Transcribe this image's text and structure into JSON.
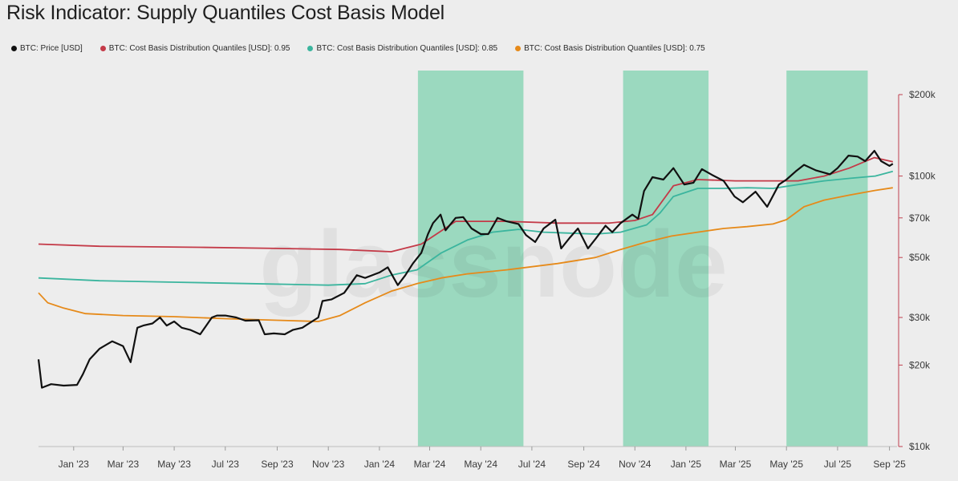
{
  "chart_data": {
    "type": "line",
    "title": "Risk Indicator: Supply Quantiles Cost Basis Model",
    "watermark": "glassnode",
    "y_scale": "log",
    "ylim": [
      10000,
      200000
    ],
    "xlim": [
      "2022-11-20",
      "2025-09-10"
    ],
    "y_ticks": [
      {
        "value": 10000,
        "label": "$10k"
      },
      {
        "value": 20000,
        "label": "$20k"
      },
      {
        "value": 30000,
        "label": "$30k"
      },
      {
        "value": 50000,
        "label": "$50k"
      },
      {
        "value": 70000,
        "label": "$70k"
      },
      {
        "value": 100000,
        "label": "$100k"
      },
      {
        "value": 200000,
        "label": "$200k"
      }
    ],
    "x_ticks": [
      {
        "date": "2023-01-01",
        "label": "Jan '23"
      },
      {
        "date": "2023-03-01",
        "label": "Mar '23"
      },
      {
        "date": "2023-05-01",
        "label": "May '23"
      },
      {
        "date": "2023-07-01",
        "label": "Jul '23"
      },
      {
        "date": "2023-09-01",
        "label": "Sep '23"
      },
      {
        "date": "2023-11-01",
        "label": "Nov '23"
      },
      {
        "date": "2024-01-01",
        "label": "Jan '24"
      },
      {
        "date": "2024-03-01",
        "label": "Mar '24"
      },
      {
        "date": "2024-05-01",
        "label": "May '24"
      },
      {
        "date": "2024-07-01",
        "label": "Jul '24"
      },
      {
        "date": "2024-09-01",
        "label": "Sep '24"
      },
      {
        "date": "2024-11-01",
        "label": "Nov '24"
      },
      {
        "date": "2025-01-01",
        "label": "Jan '25"
      },
      {
        "date": "2025-03-01",
        "label": "Mar '25"
      },
      {
        "date": "2025-05-01",
        "label": "May '25"
      },
      {
        "date": "2025-07-01",
        "label": "Jul '25"
      },
      {
        "date": "2025-09-01",
        "label": "Sep '25"
      }
    ],
    "shaded_regions": {
      "color": "#9bd9bf",
      "ranges": [
        [
          "2024-02-16",
          "2024-06-21"
        ],
        [
          "2024-10-18",
          "2025-01-28"
        ],
        [
          "2025-05-01",
          "2025-08-06"
        ]
      ]
    },
    "series": [
      {
        "name": "BTC: Price [USD]",
        "color": "#111111",
        "x": [
          "2022-11-20",
          "2022-11-24",
          "2022-12-05",
          "2022-12-20",
          "2023-01-05",
          "2023-01-12",
          "2023-01-20",
          "2023-02-01",
          "2023-02-16",
          "2023-03-01",
          "2023-03-10",
          "2023-03-18",
          "2023-03-25",
          "2023-04-05",
          "2023-04-14",
          "2023-04-22",
          "2023-05-01",
          "2023-05-10",
          "2023-05-20",
          "2023-06-01",
          "2023-06-15",
          "2023-06-21",
          "2023-07-01",
          "2023-07-14",
          "2023-07-25",
          "2023-08-10",
          "2023-08-17",
          "2023-08-28",
          "2023-09-10",
          "2023-09-20",
          "2023-10-01",
          "2023-10-20",
          "2023-10-25",
          "2023-11-05",
          "2023-11-20",
          "2023-12-05",
          "2023-12-15",
          "2024-01-01",
          "2024-01-11",
          "2024-01-23",
          "2024-02-01",
          "2024-02-10",
          "2024-02-20",
          "2024-02-28",
          "2024-03-05",
          "2024-03-14",
          "2024-03-20",
          "2024-04-01",
          "2024-04-10",
          "2024-04-20",
          "2024-05-01",
          "2024-05-10",
          "2024-05-21",
          "2024-06-01",
          "2024-06-15",
          "2024-06-24",
          "2024-07-05",
          "2024-07-15",
          "2024-07-29",
          "2024-08-05",
          "2024-08-15",
          "2024-08-25",
          "2024-09-06",
          "2024-09-15",
          "2024-09-27",
          "2024-10-05",
          "2024-10-15",
          "2024-10-29",
          "2024-11-05",
          "2024-11-12",
          "2024-11-22",
          "2024-12-05",
          "2024-12-17",
          "2024-12-30",
          "2025-01-10",
          "2025-01-20",
          "2025-02-01",
          "2025-02-15",
          "2025-02-28",
          "2025-03-10",
          "2025-03-25",
          "2025-04-08",
          "2025-04-22",
          "2025-05-01",
          "2025-05-12",
          "2025-05-22",
          "2025-06-05",
          "2025-06-22",
          "2025-07-01",
          "2025-07-14",
          "2025-07-25",
          "2025-08-03",
          "2025-08-14",
          "2025-08-22",
          "2025-09-01",
          "2025-09-05"
        ],
        "values": [
          21000,
          16500,
          17000,
          16800,
          16900,
          18500,
          21000,
          23000,
          24500,
          23500,
          20500,
          27500,
          28000,
          28500,
          30000,
          28000,
          29000,
          27500,
          27000,
          26000,
          30000,
          30500,
          30500,
          30000,
          29200,
          29300,
          26000,
          26200,
          26000,
          27000,
          27500,
          30000,
          34500,
          35000,
          37000,
          43000,
          42000,
          44000,
          46000,
          39500,
          43000,
          47500,
          52000,
          61000,
          67000,
          72000,
          63000,
          70000,
          70500,
          64000,
          61000,
          61000,
          70000,
          68000,
          66500,
          60500,
          57000,
          64000,
          69000,
          54000,
          59000,
          64000,
          54000,
          58500,
          65500,
          62000,
          67000,
          72000,
          69500,
          88000,
          99000,
          97000,
          107000,
          93000,
          94500,
          106000,
          101000,
          96000,
          84000,
          80000,
          87500,
          77000,
          93000,
          97000,
          104000,
          110000,
          105000,
          101500,
          107000,
          119000,
          118000,
          113500,
          124000,
          113500,
          109000,
          111000
        ]
      },
      {
        "name": "BTC: Cost Basis Distribution Quantiles [USD]: 0.95",
        "color": "#c43a48",
        "x": [
          "2022-11-20",
          "2023-02-01",
          "2023-06-01",
          "2023-09-01",
          "2023-11-15",
          "2024-01-15",
          "2024-02-20",
          "2024-04-01",
          "2024-06-01",
          "2024-08-01",
          "2024-10-01",
          "2024-11-01",
          "2024-11-22",
          "2024-12-17",
          "2025-01-15",
          "2025-03-01",
          "2025-05-15",
          "2025-06-15",
          "2025-07-15",
          "2025-08-14",
          "2025-09-05"
        ],
        "values": [
          56000,
          55000,
          54500,
          54000,
          53500,
          52500,
          56000,
          68000,
          68000,
          67000,
          67000,
          68500,
          72000,
          92000,
          97000,
          96000,
          96000,
          100000,
          107000,
          117000,
          113000
        ]
      },
      {
        "name": "BTC: Cost Basis Distribution Quantiles [USD]: 0.85",
        "color": "#3bb59e",
        "x": [
          "2022-11-20",
          "2023-02-01",
          "2023-05-01",
          "2023-08-01",
          "2023-11-01",
          "2023-12-15",
          "2024-01-15",
          "2024-02-15",
          "2024-03-15",
          "2024-04-15",
          "2024-05-15",
          "2024-06-15",
          "2024-07-15",
          "2024-08-15",
          "2024-09-15",
          "2024-10-15",
          "2024-11-15",
          "2024-12-01",
          "2024-12-17",
          "2025-01-15",
          "2025-02-15",
          "2025-03-15",
          "2025-04-15",
          "2025-05-15",
          "2025-06-15",
          "2025-07-15",
          "2025-08-15",
          "2025-09-05"
        ],
        "values": [
          42000,
          41000,
          40500,
          40000,
          39500,
          40000,
          43000,
          45000,
          52000,
          58000,
          62000,
          63500,
          62000,
          61500,
          61000,
          62000,
          66000,
          73000,
          84000,
          90000,
          90000,
          90500,
          90000,
          93000,
          96000,
          98000,
          100000,
          104000
        ]
      },
      {
        "name": "BTC: Cost Basis Distribution Quantiles [USD]: 0.75",
        "color": "#e68a1a",
        "x": [
          "2022-11-20",
          "2022-12-01",
          "2022-12-20",
          "2023-01-15",
          "2023-03-01",
          "2023-05-01",
          "2023-07-01",
          "2023-09-01",
          "2023-10-20",
          "2023-11-15",
          "2023-12-15",
          "2024-01-15",
          "2024-02-15",
          "2024-03-15",
          "2024-04-15",
          "2024-06-01",
          "2024-08-01",
          "2024-09-15",
          "2024-10-15",
          "2024-11-15",
          "2024-12-15",
          "2025-01-15",
          "2025-02-15",
          "2025-03-15",
          "2025-04-15",
          "2025-05-01",
          "2025-05-22",
          "2025-06-15",
          "2025-07-15",
          "2025-08-15",
          "2025-09-05"
        ],
        "values": [
          37000,
          34000,
          32500,
          31000,
          30500,
          30200,
          29700,
          29300,
          29000,
          30500,
          34000,
          37500,
          40000,
          42000,
          43500,
          45000,
          47500,
          50000,
          53500,
          57000,
          60000,
          62000,
          64000,
          65000,
          66500,
          69000,
          77000,
          81500,
          85000,
          88500,
          90500
        ]
      }
    ]
  }
}
